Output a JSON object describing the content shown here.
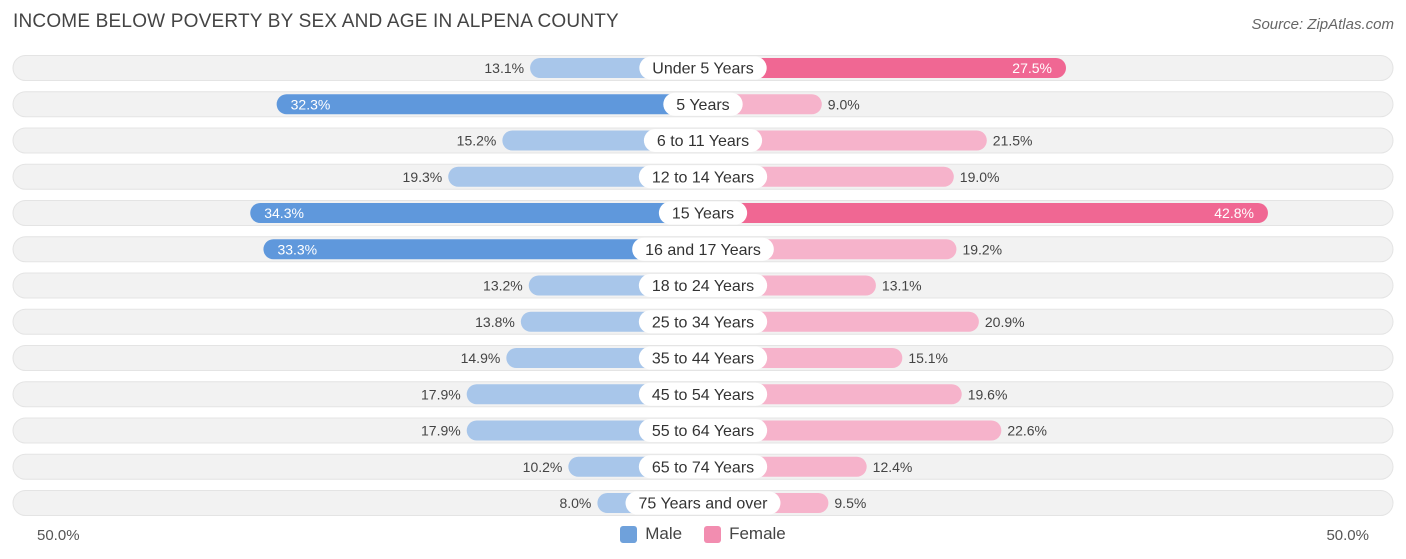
{
  "title": "INCOME BELOW POVERTY BY SEX AND AGE IN ALPENA COUNTY",
  "source": "Source: ZipAtlas.com",
  "colors": {
    "male": "#6fa1db",
    "male_strong": "#5f98dc",
    "male_light": "#a8c6ea",
    "female": "#f28db0",
    "female_strong": "#f06793",
    "female_light": "#f6b3cb",
    "row_bg": "#f2f2f2"
  },
  "chart_data": {
    "type": "bar",
    "orientation": "horizontal-diverging",
    "title": "INCOME BELOW POVERTY BY SEX AND AGE IN ALPENA COUNTY",
    "categories": [
      "Under 5 Years",
      "5 Years",
      "6 to 11 Years",
      "12 to 14 Years",
      "15 Years",
      "16 and 17 Years",
      "18 to 24 Years",
      "25 to 34 Years",
      "35 to 44 Years",
      "45 to 54 Years",
      "55 to 64 Years",
      "65 to 74 Years",
      "75 Years and over"
    ],
    "series": [
      {
        "name": "Male",
        "values": [
          13.1,
          32.3,
          15.2,
          19.3,
          34.3,
          33.3,
          13.2,
          13.8,
          14.9,
          17.9,
          17.9,
          10.2,
          8.0
        ],
        "labels": [
          "13.1%",
          "32.3%",
          "15.2%",
          "19.3%",
          "34.3%",
          "33.3%",
          "13.2%",
          "13.8%",
          "14.9%",
          "17.9%",
          "17.9%",
          "10.2%",
          "8.0%"
        ]
      },
      {
        "name": "Female",
        "values": [
          27.5,
          9.0,
          21.5,
          19.0,
          42.8,
          19.2,
          13.1,
          20.9,
          15.1,
          19.6,
          22.6,
          12.4,
          9.5
        ],
        "labels": [
          "27.5%",
          "9.0%",
          "21.5%",
          "19.0%",
          "42.8%",
          "19.2%",
          "13.1%",
          "20.9%",
          "15.1%",
          "19.6%",
          "22.6%",
          "12.4%",
          "9.5%"
        ]
      }
    ],
    "xlim": [
      -50,
      50
    ],
    "axis_labels": {
      "left": "50.0%",
      "right": "50.0%"
    },
    "legend": [
      "Male",
      "Female"
    ],
    "legend_position": "bottom-center"
  }
}
